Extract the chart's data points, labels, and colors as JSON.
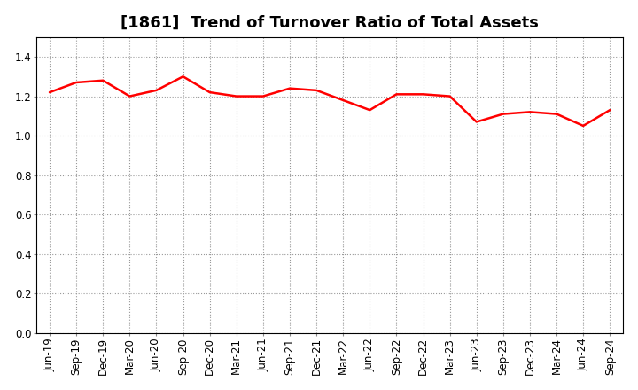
{
  "title": "[1861]  Trend of Turnover Ratio of Total Assets",
  "x_labels": [
    "Jun-19",
    "Sep-19",
    "Dec-19",
    "Mar-20",
    "Jun-20",
    "Sep-20",
    "Dec-20",
    "Mar-21",
    "Jun-21",
    "Sep-21",
    "Dec-21",
    "Mar-22",
    "Jun-22",
    "Sep-22",
    "Dec-22",
    "Mar-23",
    "Jun-23",
    "Sep-23",
    "Dec-23",
    "Mar-24",
    "Jun-24",
    "Sep-24"
  ],
  "values": [
    1.22,
    1.27,
    1.28,
    1.2,
    1.23,
    1.3,
    1.22,
    1.2,
    1.2,
    1.24,
    1.23,
    1.18,
    1.13,
    1.21,
    1.21,
    1.2,
    1.07,
    1.11,
    1.12,
    1.11,
    1.05,
    1.13
  ],
  "line_color": "#ff0000",
  "line_width": 1.8,
  "background_color": "#ffffff",
  "plot_background_color": "#ffffff",
  "grid_color": "#999999",
  "ylim": [
    0.0,
    1.5
  ],
  "yticks": [
    0.0,
    0.2,
    0.4,
    0.6,
    0.8,
    1.0,
    1.2,
    1.4
  ],
  "title_fontsize": 13,
  "tick_fontsize": 8.5
}
